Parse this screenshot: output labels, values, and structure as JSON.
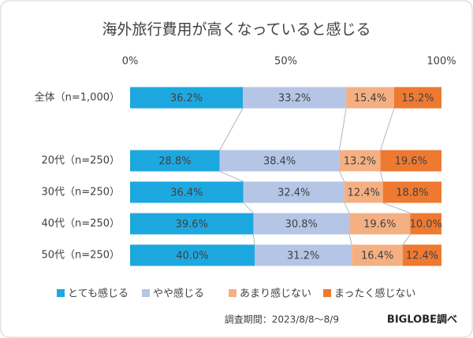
{
  "chart_data": {
    "type": "stacked-bar-horizontal",
    "title": "海外旅行費用が高くなっていると感じる",
    "categories": [
      "全体（n=1,000）",
      "20代（n=250）",
      "30代（n=250）",
      "40代（n=250）",
      "50代（n=250）"
    ],
    "series": [
      {
        "name": "とても感じる",
        "color": "#1ea8e0",
        "values": [
          36.2,
          28.8,
          36.4,
          39.6,
          40.0
        ],
        "value_labels": [
          "36.2%",
          "28.8%",
          "36.4%",
          "39.6%",
          "40.0%"
        ]
      },
      {
        "name": "やや感じる",
        "color": "#b4c5e6",
        "values": [
          33.2,
          38.4,
          32.4,
          30.8,
          31.2
        ],
        "value_labels": [
          "33.2%",
          "38.4%",
          "32.4%",
          "30.8%",
          "31.2%"
        ]
      },
      {
        "name": "あまり感じない",
        "color": "#f4b083",
        "values": [
          15.4,
          13.2,
          12.4,
          19.6,
          16.4
        ],
        "value_labels": [
          "15.4%",
          "13.2%",
          "12.4%",
          "19.6%",
          "16.4%"
        ]
      },
      {
        "name": "まったく感じない",
        "color": "#ee7a32",
        "values": [
          15.2,
          19.6,
          18.8,
          10.0,
          12.4
        ],
        "value_labels": [
          "15.2%",
          "19.6%",
          "18.8%",
          "10.0%",
          "12.4%"
        ]
      }
    ],
    "xlim": [
      0,
      100
    ],
    "xticks": [
      {
        "value": 0,
        "label": "0%"
      },
      {
        "value": 50,
        "label": "50%"
      },
      {
        "value": 100,
        "label": "100%"
      }
    ],
    "note": "調査期間：2023/8/8～8/9",
    "source": "BIGLOBE調べ"
  }
}
